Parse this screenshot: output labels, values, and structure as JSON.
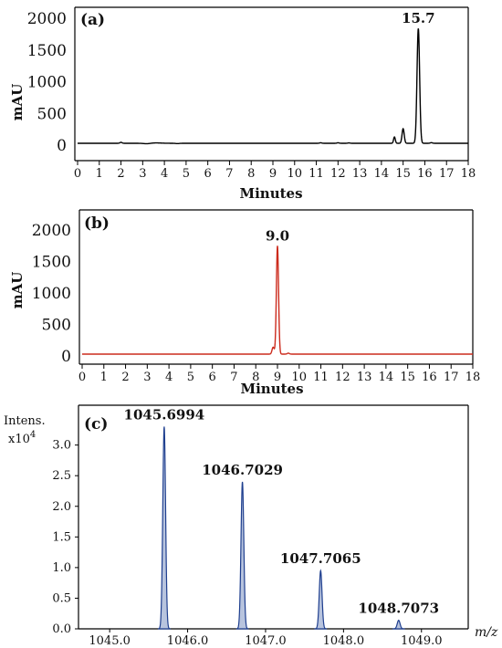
{
  "chart_data": [
    {
      "id": "a",
      "panel_label": "(a)",
      "type": "line",
      "xlabel": "Minutes",
      "ylabel": "mAU",
      "xlim": [
        0,
        18
      ],
      "ylim": [
        0,
        2000
      ],
      "xticks": [
        0,
        1,
        2,
        3,
        4,
        5,
        6,
        7,
        8,
        9,
        10,
        11,
        12,
        13,
        14,
        15,
        16,
        17,
        18
      ],
      "yticks": [
        0,
        500,
        1000,
        1500,
        2000
      ],
      "baseline": 0,
      "line_color": "#000000",
      "peak_annotation": "15.7",
      "series": [
        {
          "peaks": [
            {
              "x": 2.0,
              "h": 15,
              "w": 0.05
            },
            {
              "x": 3.2,
              "h": -8,
              "w": 0.15
            },
            {
              "x": 3.6,
              "h": 6,
              "w": 0.25
            },
            {
              "x": 4.6,
              "h": -5,
              "w": 0.08
            },
            {
              "x": 11.2,
              "h": 8,
              "w": 0.05
            },
            {
              "x": 12.0,
              "h": 8,
              "w": 0.05
            },
            {
              "x": 12.5,
              "h": 6,
              "w": 0.05
            },
            {
              "x": 14.6,
              "h": 100,
              "w": 0.04
            },
            {
              "x": 15.0,
              "h": 230,
              "w": 0.05
            },
            {
              "x": 15.7,
              "h": 1810,
              "w": 0.06
            },
            {
              "x": 16.3,
              "h": 10,
              "w": 0.05
            }
          ]
        }
      ]
    },
    {
      "id": "b",
      "panel_label": "(b)",
      "type": "line",
      "xlabel": "Minutes",
      "ylabel": "mAU",
      "xlim": [
        0,
        18
      ],
      "ylim": [
        0,
        2000
      ],
      "xticks": [
        0,
        1,
        2,
        3,
        4,
        5,
        6,
        7,
        8,
        9,
        10,
        11,
        12,
        13,
        14,
        15,
        16,
        17,
        18
      ],
      "yticks": [
        0,
        500,
        1000,
        1500,
        2000
      ],
      "baseline": 0,
      "line_color": "#cc2b1d",
      "peak_annotation": "9.0",
      "series": [
        {
          "peaks": [
            {
              "x": 8.8,
              "h": 110,
              "w": 0.05
            },
            {
              "x": 9.0,
              "h": 1720,
              "w": 0.05
            },
            {
              "x": 9.5,
              "h": 15,
              "w": 0.05
            }
          ]
        }
      ]
    },
    {
      "id": "c",
      "panel_label": "(c)",
      "type": "line",
      "xlabel": "m/z",
      "ylabel": "Intens.",
      "ylabel_unit": "x10",
      "ylabel_unit_exp": "4",
      "xlim": [
        1044.6,
        1049.6
      ],
      "ylim": [
        0,
        3.65
      ],
      "xticks": [
        1045.0,
        1046.0,
        1047.0,
        1048.0,
        1049.0
      ],
      "xtick_labels": [
        "1045.0",
        "1046.0",
        "1047.0",
        "1048.0",
        "1049.0"
      ],
      "yticks": [
        0,
        0.5,
        1.0,
        1.5,
        2.0,
        2.5,
        3.0
      ],
      "ytick_labels": [
        "0.0",
        "0.5",
        "1.0",
        "1.5",
        "2.0",
        "2.5",
        "3.0"
      ],
      "line_color": "#1f3f8f",
      "fill_color": "#b8c4de",
      "series": [
        {
          "peaks": [
            {
              "x": 1045.6994,
              "h": 3.3,
              "w": 0.018,
              "label": "1045.6994"
            },
            {
              "x": 1046.7029,
              "h": 2.4,
              "w": 0.018,
              "label": "1046.7029"
            },
            {
              "x": 1047.7065,
              "h": 0.95,
              "w": 0.018,
              "label": "1047.7065"
            },
            {
              "x": 1048.7073,
              "h": 0.14,
              "w": 0.018,
              "label": "1048.7073"
            }
          ]
        }
      ]
    }
  ]
}
